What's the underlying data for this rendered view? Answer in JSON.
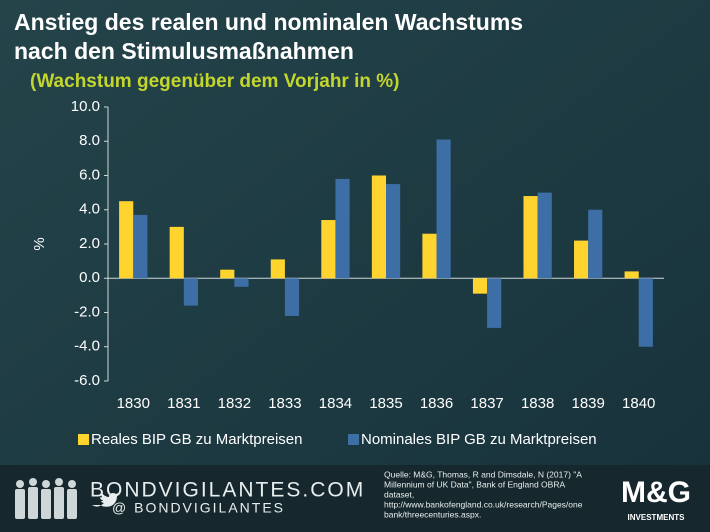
{
  "chart_data": {
    "type": "bar",
    "title": [
      "Anstieg des realen und nominalen Wachstums",
      "nach den Stimulusmaßnahmen"
    ],
    "subtitle": "(Wachstum gegenüber dem Vorjahr in %)",
    "y_label": "%",
    "categories": [
      "1830",
      "1831",
      "1832",
      "1833",
      "1834",
      "1835",
      "1836",
      "1837",
      "1838",
      "1839",
      "1840"
    ],
    "series": [
      {
        "name": "Reales BIP GB zu Marktpreisen",
        "color": "#ffd42e",
        "values": [
          4.5,
          3.0,
          0.5,
          1.1,
          3.4,
          6.0,
          2.6,
          -0.9,
          4.8,
          2.2,
          0.4
        ]
      },
      {
        "name": "Nominales BIP GB zu Marktpreisen",
        "color": "#3d6ea6",
        "values": [
          3.7,
          -1.6,
          -0.5,
          -2.2,
          5.8,
          5.5,
          8.1,
          -2.9,
          5.0,
          4.0,
          -4.0
        ]
      }
    ],
    "ylim": [
      -6,
      10
    ],
    "yticks": [
      {
        "value": 10,
        "label": "10.0"
      },
      {
        "value": 8,
        "label": "8.0"
      },
      {
        "value": 6,
        "label": "6.0"
      },
      {
        "value": 4,
        "label": "4.0"
      },
      {
        "value": 2,
        "label": "2.0"
      },
      {
        "value": 0,
        "label": "0.0"
      },
      {
        "value": -2,
        "label": "-2.0"
      },
      {
        "value": -4,
        "label": "-4.0"
      },
      {
        "value": -6,
        "label": "-6.0"
      }
    ],
    "grid": false
  },
  "footer": {
    "site": "BONDVIGILANTES.COM",
    "handle": "@ BONDVIGILANTES",
    "source": [
      "Quelle: M&G,  Thomas, R and Dimsdale, N (2017) \"A",
      "Millennium of UK Data\", Bank of England OBRA",
      "dataset,",
      "http://www.bankofengland.co.uk/research/Pages/one",
      "bank/threecenturies.aspx."
    ],
    "logo": "M&G",
    "logo_sub": "INVESTMENTS"
  }
}
